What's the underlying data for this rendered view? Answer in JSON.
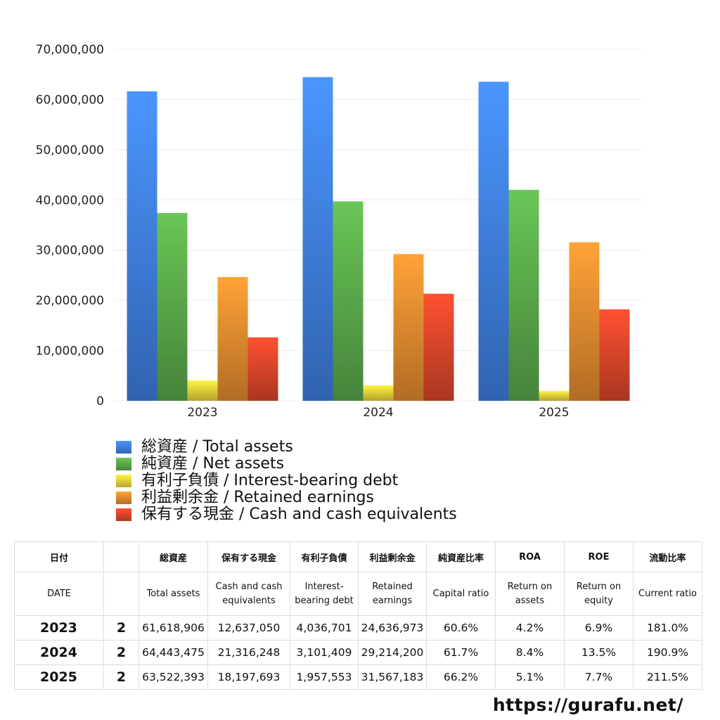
{
  "chart_data": {
    "type": "bar",
    "categories": [
      "2023",
      "2024",
      "2025"
    ],
    "ylim": [
      0,
      70000000
    ],
    "yticks": [
      "0",
      "10,000,000",
      "20,000,000",
      "30,000,000",
      "40,000,000",
      "50,000,000",
      "60,000,000",
      "70,000,000"
    ],
    "grid": true,
    "legend_position": "bottom",
    "series": [
      {
        "name": "総資産 / Total assets",
        "color": "#3f7fe0",
        "values": [
          61618906,
          64443475,
          63522393
        ]
      },
      {
        "name": "純資産 / Net assets",
        "color": "#5aa84a",
        "values": [
          37400000,
          39700000,
          42000000
        ]
      },
      {
        "name": "有利子負債 / Interest-bearing debt",
        "color": "#e9cf3a",
        "values": [
          4036701,
          3101409,
          1957553
        ]
      },
      {
        "name": "利益剰余金 / Retained earnings",
        "color": "#e48a2f",
        "values": [
          24636973,
          29214200,
          31567183
        ]
      },
      {
        "name": "保有する現金 /  Cash and cash equivalents",
        "color": "#d9452a",
        "values": [
          12637050,
          21316248,
          18197693
        ]
      }
    ]
  },
  "table": {
    "header_jp": [
      "日付",
      "",
      "総資産",
      "保有する現金",
      "有利子負債",
      "利益剰余金",
      "純資産比率",
      "ROA",
      "ROE",
      "流動比率"
    ],
    "header_en": [
      "DATE",
      "",
      "Total assets",
      "Cash and cash equivalents",
      "Interest-bearing debt",
      "Retained earnings",
      "Capital ratio",
      "Return on assets",
      "Return on equity",
      "Current ratio"
    ],
    "rows": [
      [
        "2023",
        "2",
        "61,618,906",
        "12,637,050",
        "4,036,701",
        "24,636,973",
        "60.6%",
        "4.2%",
        "6.9%",
        "181.0%"
      ],
      [
        "2024",
        "2",
        "64,443,475",
        "21,316,248",
        "3,101,409",
        "29,214,200",
        "61.7%",
        "8.4%",
        "13.5%",
        "190.9%"
      ],
      [
        "2025",
        "2",
        "63,522,393",
        "18,197,693",
        "1,957,553",
        "31,567,183",
        "66.2%",
        "5.1%",
        "7.7%",
        "211.5%"
      ]
    ]
  },
  "footer": {
    "url": "https://gurafu.net/"
  }
}
